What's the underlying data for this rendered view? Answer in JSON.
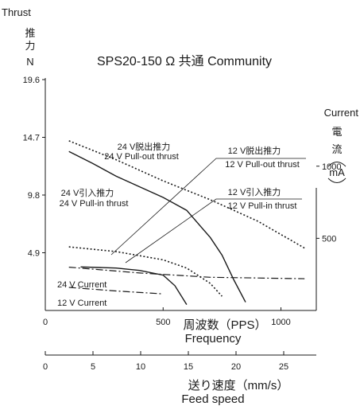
{
  "chart_data": {
    "type": "line",
    "title": "SPS20-150 Ω 共通 Community",
    "left_axis": {
      "label_lines": [
        "Thrust",
        "推",
        "力",
        "N"
      ],
      "ticks": [
        "19.6",
        "14.7",
        "9.8",
        "4.9"
      ],
      "tick_values": [
        19.6,
        14.7,
        9.8,
        4.9
      ],
      "ylim": [
        0,
        19.6
      ]
    },
    "right_axis": {
      "label_lines": [
        "Current",
        "電",
        "流",
        "mA"
      ],
      "ticks": [
        "1000",
        "500"
      ],
      "tick_values": [
        1000,
        500
      ],
      "ylim": [
        0,
        1600
      ]
    },
    "x_axis_frequency": {
      "label_jp": "周波数（PPS）",
      "label_en": "Frequency",
      "ticks": [
        "0",
        "500",
        "1000"
      ],
      "tick_values": [
        0,
        500,
        1000
      ],
      "xlim": [
        0,
        1150
      ]
    },
    "x_axis_speed": {
      "label_jp": "送り速度（mm/s）",
      "label_en": "Feed speed",
      "ticks": [
        "0",
        "5",
        "10",
        "15",
        "20",
        "25"
      ],
      "tick_values": [
        0,
        5,
        10,
        15,
        20,
        25
      ]
    },
    "series": [
      {
        "name": "24 V Pull-out thrust",
        "style": "dotted",
        "axis": "thrust",
        "x": [
          100,
          300,
          500,
          700,
          900,
          1100
        ],
        "y": [
          14.4,
          12.8,
          11.0,
          9.4,
          7.6,
          5.3
        ]
      },
      {
        "name": "24 V Pull-in thrust",
        "style": "solid",
        "axis": "thrust",
        "x": [
          100,
          200,
          300,
          400,
          500,
          600,
          700,
          750,
          800,
          850
        ],
        "y": [
          13.5,
          12.5,
          11.4,
          10.5,
          9.6,
          8.5,
          6.2,
          4.7,
          2.6,
          0.7
        ]
      },
      {
        "name": "12 V Pull-out thrust",
        "style": "dotted",
        "axis": "thrust",
        "x": [
          100,
          300,
          500,
          600,
          700,
          750
        ],
        "y": [
          5.4,
          5.0,
          4.3,
          3.6,
          2.3,
          1.2
        ]
      },
      {
        "name": "12 V Pull-in thrust",
        "style": "solid",
        "axis": "thrust",
        "x": [
          150,
          300,
          400,
          500,
          550,
          600
        ],
        "y": [
          3.7,
          3.6,
          3.4,
          3.0,
          2.1,
          0.5
        ]
      },
      {
        "name": "24 V Current",
        "style": "dashdot",
        "axis": "current",
        "x": [
          100,
          400,
          700,
          1100
        ],
        "y": [
          300,
          260,
          230,
          220
        ]
      },
      {
        "name": "12 V Current",
        "style": "dashdot",
        "axis": "current",
        "x": [
          100,
          300,
          500
        ],
        "y": [
          160,
          135,
          115
        ]
      }
    ],
    "annotations": [
      {
        "series": "24 V Pull-out thrust",
        "line1": "24 V脱出推力",
        "line2": "24 V Pull-out thrust"
      },
      {
        "series": "24 V Pull-in thrust",
        "line1": "24 V引入推力",
        "line2": "24 V Pull-in thrust"
      },
      {
        "series": "12 V Pull-out thrust",
        "line1": "12 V脱出推力",
        "line2": "12 V Pull-out thrust"
      },
      {
        "series": "12 V Pull-in thrust",
        "line1": "12 V引入推力",
        "line2": "12 V Pull-in thrust"
      },
      {
        "series": "24 V Current",
        "line1": "24 V Current"
      },
      {
        "series": "12 V Current",
        "line1": "12 V Current"
      }
    ],
    "grid": false,
    "legend": "none"
  }
}
